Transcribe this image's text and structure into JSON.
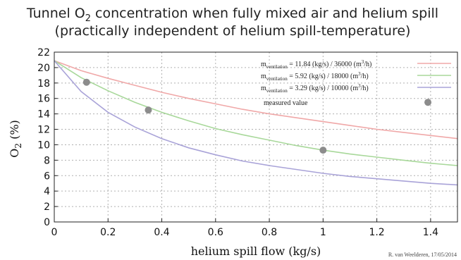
{
  "chart_data": {
    "type": "line",
    "title_main": "Tunnel O",
    "title_sub": "2",
    "title_rest": " concentration when fully mixed air and helium spill",
    "subtitle": "(practically independent of helium spill-temperature)",
    "ylabel_main": "O",
    "ylabel_sub": "2",
    "ylabel_rest": " (%)",
    "xlabel": "helium spill flow (kg/s)",
    "xlim": [
      0,
      1.5
    ],
    "ylim": [
      0,
      22
    ],
    "xticks": [
      "0",
      "0.2",
      "0.4",
      "0.6",
      "0.8",
      "1",
      "1.2",
      "1.4"
    ],
    "xtick_values": [
      0,
      0.2,
      0.4,
      0.6,
      0.8,
      1.0,
      1.2,
      1.4
    ],
    "yticks": [
      "0",
      "2",
      "4",
      "6",
      "8",
      "10",
      "12",
      "14",
      "16",
      "18",
      "20",
      "22"
    ],
    "ytick_values": [
      0,
      2,
      4,
      6,
      8,
      10,
      12,
      14,
      16,
      18,
      20,
      22
    ],
    "grid": true,
    "legend_position": "top-right",
    "series": [
      {
        "name": "11.84 (kg/s) / 36000 (m³/h)",
        "legend_prefix": "m",
        "legend_sub": "ventilation",
        "legend_value": " =  11.84 (kg/s) / 36000 (m",
        "legend_sup": "3",
        "legend_tail": "/h)",
        "color": "#f0a8a8",
        "x": [
          0,
          0.1,
          0.2,
          0.3,
          0.4,
          0.5,
          0.6,
          0.7,
          0.8,
          0.9,
          1.0,
          1.1,
          1.2,
          1.3,
          1.4,
          1.5
        ],
        "y": [
          20.9,
          19.6,
          18.6,
          17.7,
          16.8,
          16.0,
          15.3,
          14.6,
          14.0,
          13.5,
          13.0,
          12.5,
          12.0,
          11.6,
          11.2,
          10.8
        ]
      },
      {
        "name": "5.92 (kg/s) / 18000 (m³/h)",
        "legend_prefix": "m",
        "legend_sub": "ventilation",
        "legend_value": " =    5.92 (kg/s) / 18000 (m",
        "legend_sup": "3",
        "legend_tail": "/h)",
        "color": "#a8d89a",
        "x": [
          0,
          0.1,
          0.2,
          0.3,
          0.4,
          0.5,
          0.6,
          0.7,
          0.8,
          0.9,
          1.0,
          1.1,
          1.2,
          1.3,
          1.4,
          1.5
        ],
        "y": [
          20.9,
          18.7,
          17.0,
          15.5,
          14.2,
          13.1,
          12.1,
          11.3,
          10.6,
          9.9,
          9.3,
          8.8,
          8.4,
          8.0,
          7.6,
          7.3
        ]
      },
      {
        "name": "3.29 (kg/s) / 10000 (m³/h)",
        "legend_prefix": "m",
        "legend_sub": "ventilation",
        "legend_value": " =    3.29 (kg/s) / 10000 (m",
        "legend_sup": "3",
        "legend_tail": "/h)",
        "color": "#a9a3d8",
        "x": [
          0,
          0.1,
          0.2,
          0.3,
          0.4,
          0.5,
          0.6,
          0.7,
          0.8,
          0.9,
          1.0,
          1.1,
          1.2,
          1.3,
          1.4,
          1.5
        ],
        "y": [
          20.9,
          16.9,
          14.2,
          12.3,
          10.8,
          9.6,
          8.7,
          7.9,
          7.3,
          6.8,
          6.3,
          5.9,
          5.6,
          5.3,
          5.0,
          4.8
        ]
      }
    ],
    "measured": {
      "name": "measured value",
      "color": "#8c8c8c",
      "x": [
        0.12,
        0.35,
        1.0,
        1.39
      ],
      "y": [
        18.1,
        14.5,
        9.3,
        15.5
      ]
    },
    "credit": "R. van Weelderen, 17/05/2014"
  }
}
